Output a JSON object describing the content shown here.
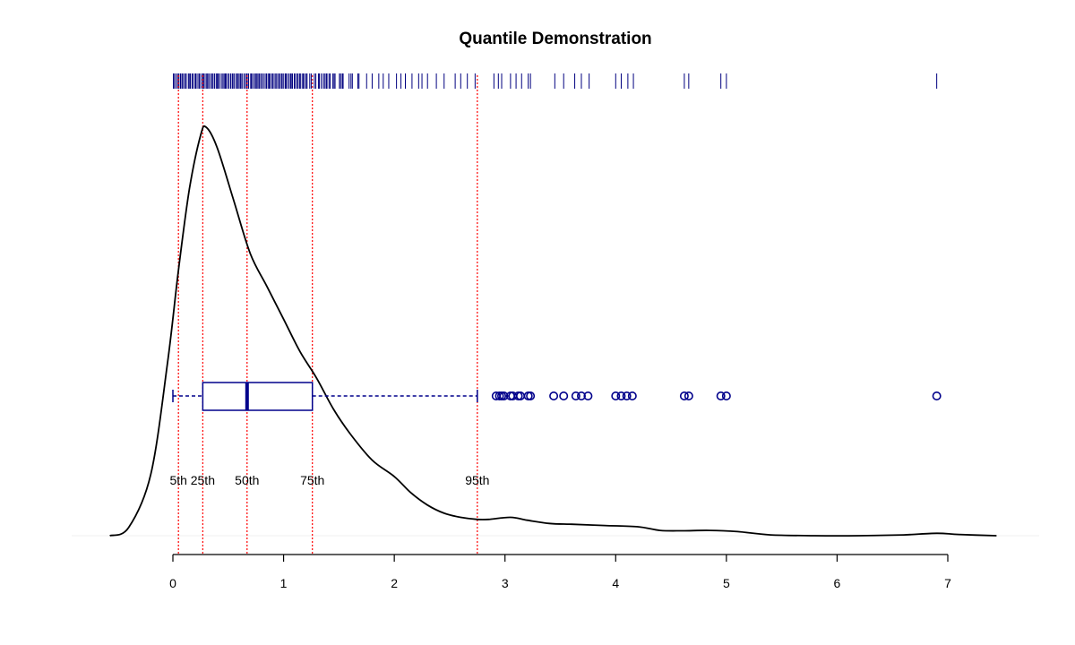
{
  "colors": {
    "rug": "#00007f",
    "box": "#00008b",
    "density": "#000000",
    "quantile_line": "#ff0000",
    "axis": "#000000"
  },
  "chart_data": {
    "type": "density",
    "title": "Quantile Demonstration",
    "xlabel": "",
    "ylabel": "",
    "x_axis": {
      "range": [
        0,
        7
      ],
      "ticks": [
        0,
        1,
        2,
        3,
        4,
        5,
        6,
        7
      ]
    },
    "view_x_range": [
      -0.6,
      7.45
    ],
    "grid": false,
    "quantiles": [
      {
        "label": "5th",
        "value": 0.05
      },
      {
        "label": "25th",
        "value": 0.27
      },
      {
        "label": "50th",
        "value": 0.67
      },
      {
        "label": "75th",
        "value": 1.26
      },
      {
        "label": "95th",
        "value": 2.75
      }
    ],
    "boxplot": {
      "whisker_low": 0.0,
      "q1": 0.27,
      "median": 0.67,
      "q3": 1.26,
      "whisker_high": 2.75,
      "outliers": [
        2.92,
        2.95,
        2.97,
        2.99,
        3.05,
        3.07,
        3.12,
        3.14,
        3.21,
        3.23,
        3.44,
        3.53,
        3.64,
        3.69,
        3.75,
        4.0,
        4.05,
        4.1,
        4.15,
        4.62,
        4.66,
        4.95,
        5.0,
        6.9
      ]
    },
    "rug": {
      "dense_range": [
        0.0,
        1.7
      ],
      "points": [
        1.75,
        1.8,
        1.86,
        1.9,
        1.95,
        2.02,
        2.06,
        2.1,
        2.16,
        2.22,
        2.25,
        2.3,
        2.38,
        2.45,
        2.55,
        2.6,
        2.66,
        2.73,
        2.9,
        2.94,
        2.97,
        3.05,
        3.1,
        3.15,
        3.21,
        3.23,
        3.45,
        3.53,
        3.63,
        3.69,
        3.76,
        4.0,
        4.05,
        4.11,
        4.16,
        4.62,
        4.66,
        4.95,
        5.0,
        6.9
      ]
    },
    "density": {
      "x": [
        -0.57,
        -0.4,
        -0.2,
        -0.05,
        0.05,
        0.15,
        0.25,
        0.3,
        0.4,
        0.55,
        0.7,
        0.85,
        1.0,
        1.15,
        1.3,
        1.45,
        1.6,
        1.8,
        2.0,
        2.15,
        2.3,
        2.45,
        2.6,
        2.75,
        2.85,
        3.05,
        3.2,
        3.4,
        3.6,
        3.9,
        4.2,
        4.4,
        4.6,
        4.85,
        5.1,
        5.4,
        5.8,
        6.2,
        6.6,
        6.9,
        7.1,
        7.44
      ],
      "y": [
        0.0,
        0.2,
        1.5,
        4.2,
        6.5,
        8.5,
        9.8,
        10.0,
        9.5,
        8.2,
        6.9,
        6.1,
        5.3,
        4.5,
        3.85,
        3.1,
        2.5,
        1.85,
        1.45,
        1.05,
        0.75,
        0.55,
        0.45,
        0.4,
        0.4,
        0.45,
        0.38,
        0.3,
        0.28,
        0.25,
        0.22,
        0.13,
        0.12,
        0.13,
        0.1,
        0.02,
        0.0,
        0.0,
        0.02,
        0.06,
        0.03,
        0.0
      ]
    }
  }
}
